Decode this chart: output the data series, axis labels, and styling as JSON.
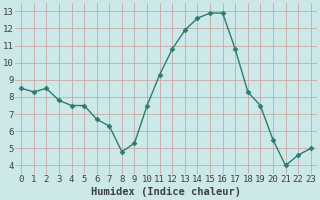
{
  "x": [
    0,
    1,
    2,
    3,
    4,
    5,
    6,
    7,
    8,
    9,
    10,
    11,
    12,
    13,
    14,
    15,
    16,
    17,
    18,
    19,
    20,
    21,
    22,
    23
  ],
  "y": [
    8.5,
    8.3,
    8.5,
    7.8,
    7.5,
    7.5,
    6.7,
    6.3,
    4.8,
    5.3,
    7.5,
    9.3,
    10.8,
    11.9,
    12.6,
    12.9,
    12.9,
    10.8,
    8.3,
    7.5,
    5.5,
    4.0,
    4.6,
    5.0
  ],
  "line_color": "#2d7d6e",
  "marker": "D",
  "marker_size": 2.5,
  "background_color": "#cce8e8",
  "grid_color": "#c8a8a8",
  "xlabel": "Humidex (Indice chaleur)",
  "xlim": [
    -0.5,
    23.5
  ],
  "ylim": [
    3.5,
    13.5
  ],
  "yticks": [
    4,
    5,
    6,
    7,
    8,
    9,
    10,
    11,
    12,
    13
  ],
  "xticks": [
    0,
    1,
    2,
    3,
    4,
    5,
    6,
    7,
    8,
    9,
    10,
    11,
    12,
    13,
    14,
    15,
    16,
    17,
    18,
    19,
    20,
    21,
    22,
    23
  ],
  "font_color": "#404040",
  "xlabel_fontsize": 7.5,
  "tick_fontsize": 6.5,
  "linewidth": 1.0
}
